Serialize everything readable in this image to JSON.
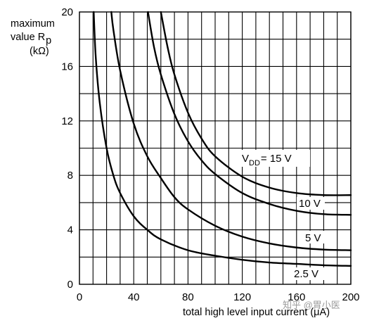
{
  "chart_data": {
    "type": "line",
    "ylabel_lines": [
      "maximum",
      "value R",
      "p",
      "(kΩ)"
    ],
    "xlabel": "total high level input current  (μA)",
    "xlim": [
      0,
      200
    ],
    "ylim": [
      0,
      20
    ],
    "xticks": [
      0,
      40,
      80,
      120,
      160,
      200
    ],
    "yticks": [
      0,
      4,
      8,
      12,
      16,
      20
    ],
    "x_minor_step": 10,
    "y_minor_step": 2,
    "grid": true,
    "series": [
      {
        "name": "2.5 V",
        "points": [
          [
            10.5,
            20
          ],
          [
            12,
            16.7
          ],
          [
            15,
            13.3
          ],
          [
            20,
            10
          ],
          [
            25,
            8
          ],
          [
            30,
            6.7
          ],
          [
            40,
            5
          ],
          [
            50,
            4
          ],
          [
            60,
            3.3
          ],
          [
            80,
            2.5
          ],
          [
            100,
            2.1
          ],
          [
            120,
            1.8
          ],
          [
            140,
            1.6
          ],
          [
            160,
            1.5
          ],
          [
            180,
            1.4
          ],
          [
            200,
            1.35
          ]
        ]
      },
      {
        "name": "5 V",
        "points": [
          [
            23.5,
            20
          ],
          [
            25,
            18.7
          ],
          [
            30,
            15.7
          ],
          [
            40,
            11.8
          ],
          [
            50,
            9.4
          ],
          [
            60,
            7.8
          ],
          [
            70,
            6.4
          ],
          [
            80,
            5.5
          ],
          [
            100,
            4.3
          ],
          [
            120,
            3.5
          ],
          [
            140,
            3
          ],
          [
            160,
            2.7
          ],
          [
            180,
            2.55
          ],
          [
            200,
            2.5
          ]
        ]
      },
      {
        "name": "10 V",
        "points": [
          [
            50.5,
            20
          ],
          [
            55,
            17.4
          ],
          [
            60,
            15.4
          ],
          [
            70,
            12.5
          ],
          [
            80,
            10.5
          ],
          [
            90,
            9.1
          ],
          [
            100,
            8.1
          ],
          [
            120,
            6.7
          ],
          [
            140,
            5.9
          ],
          [
            160,
            5.4
          ],
          [
            180,
            5.15
          ],
          [
            200,
            5.1
          ]
        ]
      },
      {
        "name": "VDD= 15 V",
        "points": [
          [
            60,
            20
          ],
          [
            65,
            17.4
          ],
          [
            70,
            15.4
          ],
          [
            80,
            12.6
          ],
          [
            90,
            10.7
          ],
          [
            100,
            9.4
          ],
          [
            120,
            7.9
          ],
          [
            140,
            7.1
          ],
          [
            160,
            6.7
          ],
          [
            180,
            6.55
          ],
          [
            200,
            6.55
          ]
        ]
      }
    ],
    "series_labels": {
      "vdd": "V",
      "vdd_sub": "DD",
      "vdd_rest": "= 15 V",
      "v10": "10 V",
      "v5": "5 V",
      "v25": "2.5 V"
    }
  },
  "watermark": "知乎 @胃小医"
}
